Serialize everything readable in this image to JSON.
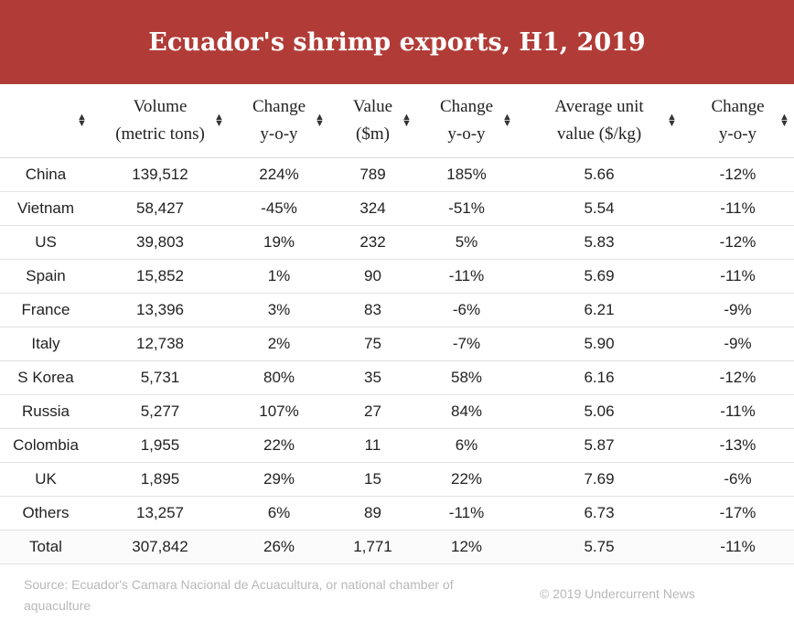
{
  "title": "Ecuador's shrimp exports, H1, 2019",
  "headers": [
    "",
    "Volume\n(metric tons)",
    "Change\ny-o-y",
    "Value\n($m)",
    "Change\ny-o-y",
    "Average unit\nvalue ($/kg)",
    "Change\ny-o-y"
  ],
  "sort_icon": "sort-up-down-icon",
  "accent_color": "#b13c37",
  "chart_data": {
    "type": "table",
    "title": "Ecuador's shrimp exports, H1, 2019",
    "columns": [
      "",
      "Volume (metric tons)",
      "Change y-o-y",
      "Value ($m)",
      "Change y-o-y",
      "Average unit value ($/kg)",
      "Change y-o-y"
    ],
    "rows": [
      [
        "China",
        "139,512",
        "224%",
        "789",
        "185%",
        "5.66",
        "-12%"
      ],
      [
        "Vietnam",
        "58,427",
        "-45%",
        "324",
        "-51%",
        "5.54",
        "-11%"
      ],
      [
        "US",
        "39,803",
        "19%",
        "232",
        "5%",
        "5.83",
        "-12%"
      ],
      [
        "Spain",
        "15,852",
        "1%",
        "90",
        "-11%",
        "5.69",
        "-11%"
      ],
      [
        "France",
        "13,396",
        "3%",
        "83",
        "-6%",
        "6.21",
        "-9%"
      ],
      [
        "Italy",
        "12,738",
        "2%",
        "75",
        "-7%",
        "5.90",
        "-9%"
      ],
      [
        "S Korea",
        "5,731",
        "80%",
        "35",
        "58%",
        "6.16",
        "-12%"
      ],
      [
        "Russia",
        "5,277",
        "107%",
        "27",
        "84%",
        "5.06",
        "-11%"
      ],
      [
        "Colombia",
        "1,955",
        "22%",
        "11",
        "6%",
        "5.87",
        "-13%"
      ],
      [
        "UK",
        "1,895",
        "29%",
        "15",
        "22%",
        "7.69",
        "-6%"
      ],
      [
        "Others",
        "13,257",
        "6%",
        "89",
        "-11%",
        "6.73",
        "-17%"
      ],
      [
        "Total",
        "307,842",
        "26%",
        "1,771",
        "12%",
        "5.75",
        "-11%"
      ]
    ]
  },
  "footer": {
    "source": "Source: Ecuador's Camara Nacional de Acuacultura, or national chamber of aquaculture",
    "copyright": "© 2019 Undercurrent News"
  }
}
